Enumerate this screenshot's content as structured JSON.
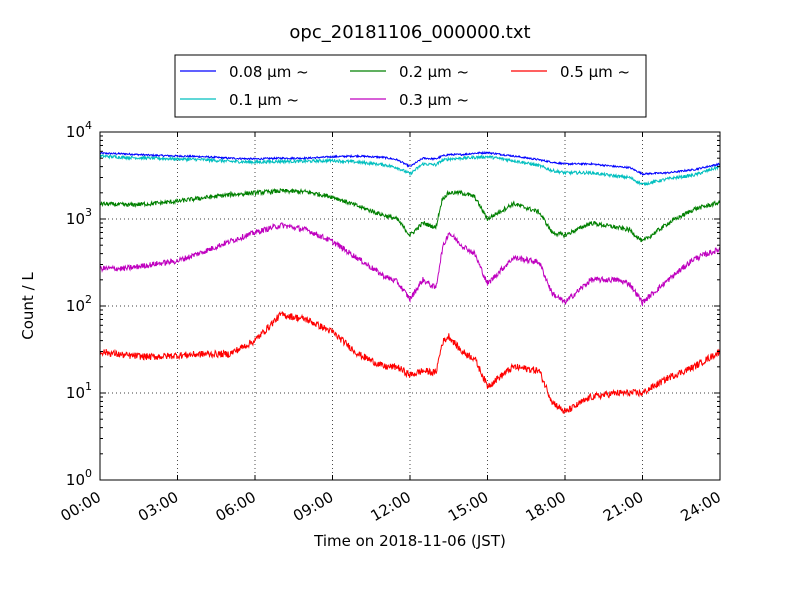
{
  "chart_data": {
    "type": "line",
    "title": "opc_20181106_000000.txt",
    "xlabel": "Time on 2018-11-06 (JST)",
    "ylabel": "Count / L",
    "y_scale": "log",
    "ylim": [
      1,
      10000
    ],
    "xlim": [
      "2018-11-06 00:00",
      "2018-11-07 00:00"
    ],
    "x_ticks": [
      "00:00",
      "03:00",
      "06:00",
      "09:00",
      "12:00",
      "15:00",
      "18:00",
      "21:00",
      "24:00"
    ],
    "y_ticks": [
      {
        "base": "10",
        "exp": "0"
      },
      {
        "base": "10",
        "exp": "1"
      },
      {
        "base": "10",
        "exp": "2"
      },
      {
        "base": "10",
        "exp": "3"
      },
      {
        "base": "10",
        "exp": "4"
      }
    ],
    "grid": true,
    "legend_position": "top-center",
    "x": [
      "00:00",
      "01:00",
      "02:00",
      "03:00",
      "04:00",
      "05:00",
      "06:00",
      "07:00",
      "08:00",
      "09:00",
      "10:00",
      "11:00",
      "11:30",
      "12:00",
      "12:30",
      "13:00",
      "13:15",
      "13:30",
      "14:00",
      "14:30",
      "15:00",
      "16:00",
      "17:00",
      "17:30",
      "18:00",
      "19:00",
      "20:00",
      "20:30",
      "21:00",
      "22:00",
      "23:00",
      "24:00"
    ],
    "series": [
      {
        "name": "0.08 μm ~",
        "color": "#0000ff",
        "values": [
          5700,
          5600,
          5400,
          5300,
          5200,
          5000,
          4900,
          5000,
          5000,
          5200,
          5300,
          5100,
          4800,
          4000,
          5000,
          4900,
          5300,
          5500,
          5500,
          5700,
          5800,
          5300,
          4800,
          4500,
          4300,
          4300,
          4000,
          3900,
          3300,
          3400,
          3700,
          4300
        ]
      },
      {
        "name": "0.1 μm ~",
        "color": "#00bfbf",
        "values": [
          5300,
          5100,
          5000,
          4900,
          4800,
          4600,
          4500,
          4600,
          4600,
          4700,
          4500,
          4200,
          3900,
          3300,
          4300,
          4200,
          4700,
          4900,
          5000,
          5100,
          5200,
          4700,
          4100,
          3600,
          3400,
          3400,
          3100,
          3000,
          2500,
          2900,
          3200,
          4000
        ]
      },
      {
        "name": "0.2 μm ~",
        "color": "#008000",
        "values": [
          1500,
          1450,
          1500,
          1600,
          1750,
          1900,
          2000,
          2100,
          2050,
          1800,
          1400,
          1100,
          1000,
          650,
          900,
          800,
          1700,
          2000,
          2000,
          1800,
          1000,
          1500,
          1200,
          700,
          650,
          900,
          800,
          750,
          550,
          900,
          1300,
          1550
        ]
      },
      {
        "name": "0.3 μm ~",
        "color": "#bf00bf",
        "values": [
          270,
          270,
          300,
          330,
          420,
          550,
          700,
          850,
          750,
          550,
          350,
          220,
          190,
          120,
          200,
          160,
          450,
          700,
          500,
          400,
          180,
          360,
          320,
          140,
          110,
          200,
          200,
          180,
          110,
          200,
          350,
          450
        ]
      },
      {
        "name": "0.5 μm ~",
        "color": "#ff0000",
        "values": [
          30,
          27,
          26,
          27,
          28,
          28,
          40,
          80,
          70,
          50,
          28,
          20,
          20,
          16,
          18,
          17,
          38,
          45,
          30,
          25,
          12,
          20,
          18,
          8,
          6,
          9,
          10,
          10,
          10,
          15,
          20,
          30
        ]
      }
    ]
  }
}
